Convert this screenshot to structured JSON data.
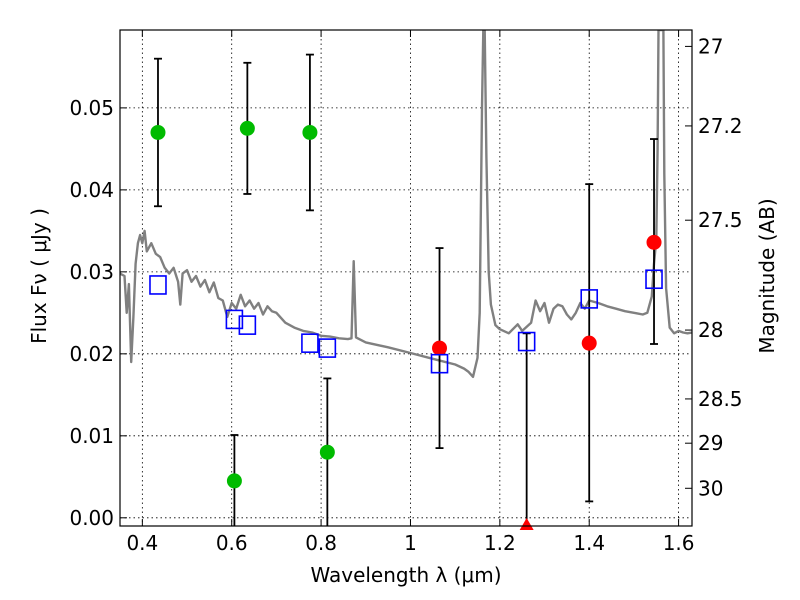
{
  "chart_data": {
    "type": "scatter",
    "xlabel": "Wavelength  λ (μm)",
    "ylabel": "Flux  Fν  ( μJy )",
    "ylabel_right": "Magnitude (AB)",
    "xlim": [
      0.35,
      1.63
    ],
    "ylim": [
      -0.001,
      0.0595
    ],
    "x_ticks": [
      0.4,
      0.6,
      0.8,
      1.0,
      1.2,
      1.4,
      1.6
    ],
    "x_tick_labels": [
      "0.4",
      "0.6",
      "0.8",
      "1",
      "1.2",
      "1.4",
      "1.6"
    ],
    "y_ticks": [
      0.0,
      0.01,
      0.02,
      0.03,
      0.04,
      0.05
    ],
    "y_tick_labels": [
      "0.00",
      "0.01",
      "0.02",
      "0.03",
      "0.04",
      "0.05"
    ],
    "right_ticks": [
      {
        "label": "27",
        "flux": 0.0575
      },
      {
        "label": "27.2",
        "flux": 0.0478
      },
      {
        "label": "27.5",
        "flux": 0.0363
      },
      {
        "label": "28",
        "flux": 0.0229
      },
      {
        "label": "28.5",
        "flux": 0.0145
      },
      {
        "label": "29",
        "flux": 0.0091
      },
      {
        "label": "30",
        "flux": 0.0036
      }
    ],
    "grid": true,
    "colors": {
      "green": "#00bb00",
      "red": "#ff0000",
      "blue": "#0000ff",
      "sed": "#808080",
      "errorbar": "#000000"
    },
    "series": [
      {
        "marker": "circle",
        "color": "green",
        "points": [
          {
            "x": 0.435,
            "y": 0.047,
            "ylo": 0.038,
            "yhi": 0.056
          },
          {
            "x": 0.606,
            "y": 0.0045,
            "ylo": -0.001,
            "yhi": 0.0101
          },
          {
            "x": 0.635,
            "y": 0.0475,
            "ylo": 0.0395,
            "yhi": 0.0555
          },
          {
            "x": 0.775,
            "y": 0.047,
            "ylo": 0.0375,
            "yhi": 0.0565
          },
          {
            "x": 0.814,
            "y": 0.008,
            "ylo": -0.001,
            "yhi": 0.017
          }
        ]
      },
      {
        "marker": "circle",
        "color": "red",
        "points": [
          {
            "x": 1.065,
            "y": 0.0207,
            "ylo": 0.0085,
            "yhi": 0.0329
          },
          {
            "x": 1.26,
            "y": -0.001,
            "ylo": -0.001,
            "yhi": 0.0225,
            "marker": "triangle"
          },
          {
            "x": 1.4,
            "y": 0.0213,
            "ylo": 0.002,
            "yhi": 0.0407
          },
          {
            "x": 1.545,
            "y": 0.0336,
            "ylo": 0.0212,
            "yhi": 0.0462
          }
        ]
      },
      {
        "marker": "open-square",
        "color": "blue",
        "points": [
          {
            "x": 0.435,
            "y": 0.0284
          },
          {
            "x": 0.606,
            "y": 0.0242
          },
          {
            "x": 0.635,
            "y": 0.0235
          },
          {
            "x": 0.775,
            "y": 0.0213
          },
          {
            "x": 0.814,
            "y": 0.0207
          },
          {
            "x": 1.065,
            "y": 0.0188
          },
          {
            "x": 1.26,
            "y": 0.0215
          },
          {
            "x": 1.4,
            "y": 0.0267
          },
          {
            "x": 1.545,
            "y": 0.0291
          }
        ]
      }
    ],
    "sed": [
      [
        0.35,
        0.0298
      ],
      [
        0.36,
        0.0295
      ],
      [
        0.365,
        0.025
      ],
      [
        0.37,
        0.0285
      ],
      [
        0.375,
        0.019
      ],
      [
        0.38,
        0.0245
      ],
      [
        0.385,
        0.031
      ],
      [
        0.39,
        0.0335
      ],
      [
        0.395,
        0.0345
      ],
      [
        0.4,
        0.0335
      ],
      [
        0.405,
        0.035
      ],
      [
        0.41,
        0.0325
      ],
      [
        0.42,
        0.0335
      ],
      [
        0.43,
        0.0322
      ],
      [
        0.44,
        0.0318
      ],
      [
        0.45,
        0.0305
      ],
      [
        0.46,
        0.0298
      ],
      [
        0.47,
        0.0305
      ],
      [
        0.48,
        0.0288
      ],
      [
        0.485,
        0.026
      ],
      [
        0.49,
        0.0298
      ],
      [
        0.5,
        0.0302
      ],
      [
        0.51,
        0.0288
      ],
      [
        0.52,
        0.0295
      ],
      [
        0.53,
        0.0282
      ],
      [
        0.54,
        0.029
      ],
      [
        0.55,
        0.0275
      ],
      [
        0.56,
        0.0287
      ],
      [
        0.57,
        0.0268
      ],
      [
        0.58,
        0.0265
      ],
      [
        0.59,
        0.0245
      ],
      [
        0.6,
        0.0262
      ],
      [
        0.61,
        0.0255
      ],
      [
        0.62,
        0.0272
      ],
      [
        0.63,
        0.0258
      ],
      [
        0.64,
        0.0265
      ],
      [
        0.65,
        0.0255
      ],
      [
        0.66,
        0.0262
      ],
      [
        0.67,
        0.0248
      ],
      [
        0.68,
        0.0258
      ],
      [
        0.69,
        0.0252
      ],
      [
        0.7,
        0.025
      ],
      [
        0.71,
        0.0244
      ],
      [
        0.72,
        0.0238
      ],
      [
        0.74,
        0.0232
      ],
      [
        0.76,
        0.0228
      ],
      [
        0.78,
        0.0226
      ],
      [
        0.8,
        0.0222
      ],
      [
        0.82,
        0.0221
      ],
      [
        0.84,
        0.0219
      ],
      [
        0.86,
        0.0218
      ],
      [
        0.868,
        0.0219
      ],
      [
        0.873,
        0.0313
      ],
      [
        0.878,
        0.022
      ],
      [
        0.9,
        0.0214
      ],
      [
        0.95,
        0.0208
      ],
      [
        1.0,
        0.0201
      ],
      [
        1.05,
        0.0194
      ],
      [
        1.1,
        0.0187
      ],
      [
        1.12,
        0.0182
      ],
      [
        1.13,
        0.0178
      ],
      [
        1.14,
        0.0172
      ],
      [
        1.15,
        0.0195
      ],
      [
        1.155,
        0.025
      ],
      [
        1.16,
        0.05
      ],
      [
        1.163,
        0.0595
      ],
      [
        1.166,
        0.0595
      ],
      [
        1.17,
        0.044
      ],
      [
        1.175,
        0.03
      ],
      [
        1.18,
        0.026
      ],
      [
        1.19,
        0.0235
      ],
      [
        1.2,
        0.023
      ],
      [
        1.22,
        0.0225
      ],
      [
        1.24,
        0.0236
      ],
      [
        1.25,
        0.0228
      ],
      [
        1.27,
        0.0238
      ],
      [
        1.28,
        0.0265
      ],
      [
        1.29,
        0.0252
      ],
      [
        1.3,
        0.0262
      ],
      [
        1.31,
        0.0238
      ],
      [
        1.32,
        0.0255
      ],
      [
        1.33,
        0.026
      ],
      [
        1.34,
        0.0258
      ],
      [
        1.35,
        0.0248
      ],
      [
        1.36,
        0.0242
      ],
      [
        1.37,
        0.025
      ],
      [
        1.38,
        0.0262
      ],
      [
        1.39,
        0.0255
      ],
      [
        1.4,
        0.0265
      ],
      [
        1.42,
        0.0262
      ],
      [
        1.44,
        0.0258
      ],
      [
        1.46,
        0.0255
      ],
      [
        1.48,
        0.0252
      ],
      [
        1.5,
        0.025
      ],
      [
        1.52,
        0.0248
      ],
      [
        1.53,
        0.025
      ],
      [
        1.54,
        0.027
      ],
      [
        1.545,
        0.031
      ],
      [
        1.55,
        0.034
      ],
      [
        1.553,
        0.045
      ],
      [
        1.555,
        0.0595
      ],
      [
        1.566,
        0.0595
      ],
      [
        1.568,
        0.042
      ],
      [
        1.572,
        0.028
      ],
      [
        1.58,
        0.0232
      ],
      [
        1.59,
        0.0225
      ],
      [
        1.6,
        0.0228
      ],
      [
        1.61,
        0.0226
      ],
      [
        1.62,
        0.0225
      ],
      [
        1.63,
        0.0226
      ]
    ]
  }
}
